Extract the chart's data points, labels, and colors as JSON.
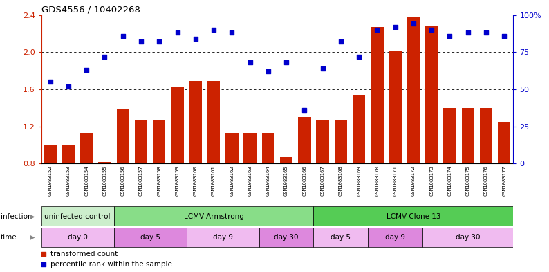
{
  "title": "GDS4556 / 10402268",
  "samples": [
    "GSM1083152",
    "GSM1083153",
    "GSM1083154",
    "GSM1083155",
    "GSM1083156",
    "GSM1083157",
    "GSM1083158",
    "GSM1083159",
    "GSM1083160",
    "GSM1083161",
    "GSM1083162",
    "GSM1083163",
    "GSM1083164",
    "GSM1083165",
    "GSM1083166",
    "GSM1083167",
    "GSM1083168",
    "GSM1083169",
    "GSM1083170",
    "GSM1083171",
    "GSM1083172",
    "GSM1083173",
    "GSM1083174",
    "GSM1083175",
    "GSM1083176",
    "GSM1083177"
  ],
  "transformed_count": [
    1.0,
    1.0,
    1.13,
    0.82,
    1.38,
    1.27,
    1.27,
    1.63,
    1.69,
    1.69,
    1.13,
    1.13,
    1.13,
    0.87,
    1.3,
    1.27,
    1.27,
    1.54,
    2.27,
    2.01,
    2.38,
    2.28,
    1.4,
    1.4,
    1.4,
    1.25
  ],
  "percentile_rank": [
    55,
    52,
    63,
    72,
    86,
    82,
    82,
    88,
    84,
    90,
    88,
    68,
    62,
    68,
    36,
    64,
    82,
    72,
    90,
    92,
    94,
    90,
    86,
    88,
    88,
    86
  ],
  "bar_color": "#cc2200",
  "dot_color": "#0000cc",
  "ylim_left": [
    0.8,
    2.4
  ],
  "ylim_right": [
    0,
    100
  ],
  "yticks_left": [
    0.8,
    1.2,
    1.6,
    2.0,
    2.4
  ],
  "yticks_right": [
    0,
    25,
    50,
    75,
    100
  ],
  "ytick_labels_right": [
    "0",
    "25",
    "50",
    "75",
    "100%"
  ],
  "infection_groups": [
    {
      "label": "uninfected control",
      "start": 0,
      "end": 3,
      "color": "#cceecc"
    },
    {
      "label": "LCMV-Armstrong",
      "start": 4,
      "end": 14,
      "color": "#88dd88"
    },
    {
      "label": "LCMV-Clone 13",
      "start": 15,
      "end": 25,
      "color": "#55cc55"
    }
  ],
  "time_groups": [
    {
      "label": "day 0",
      "start": 0,
      "end": 3,
      "color": "#f0bbf0"
    },
    {
      "label": "day 5",
      "start": 4,
      "end": 7,
      "color": "#dd88dd"
    },
    {
      "label": "day 9",
      "start": 8,
      "end": 11,
      "color": "#f0bbf0"
    },
    {
      "label": "day 30",
      "start": 12,
      "end": 14,
      "color": "#dd88dd"
    },
    {
      "label": "day 5",
      "start": 15,
      "end": 17,
      "color": "#f0bbf0"
    },
    {
      "label": "day 9",
      "start": 18,
      "end": 20,
      "color": "#dd88dd"
    },
    {
      "label": "day 30",
      "start": 21,
      "end": 25,
      "color": "#f0bbf0"
    }
  ],
  "xtick_bg_color": "#cccccc",
  "legend_items": [
    {
      "label": "transformed count",
      "color": "#cc2200"
    },
    {
      "label": "percentile rank within the sample",
      "color": "#0000cc"
    }
  ],
  "bg_color": "#ffffff",
  "grid_color": "#000000",
  "axis_label_color_left": "#cc2200",
  "axis_label_color_right": "#0000cc",
  "grid_yticks": [
    1.2,
    1.6,
    2.0
  ]
}
